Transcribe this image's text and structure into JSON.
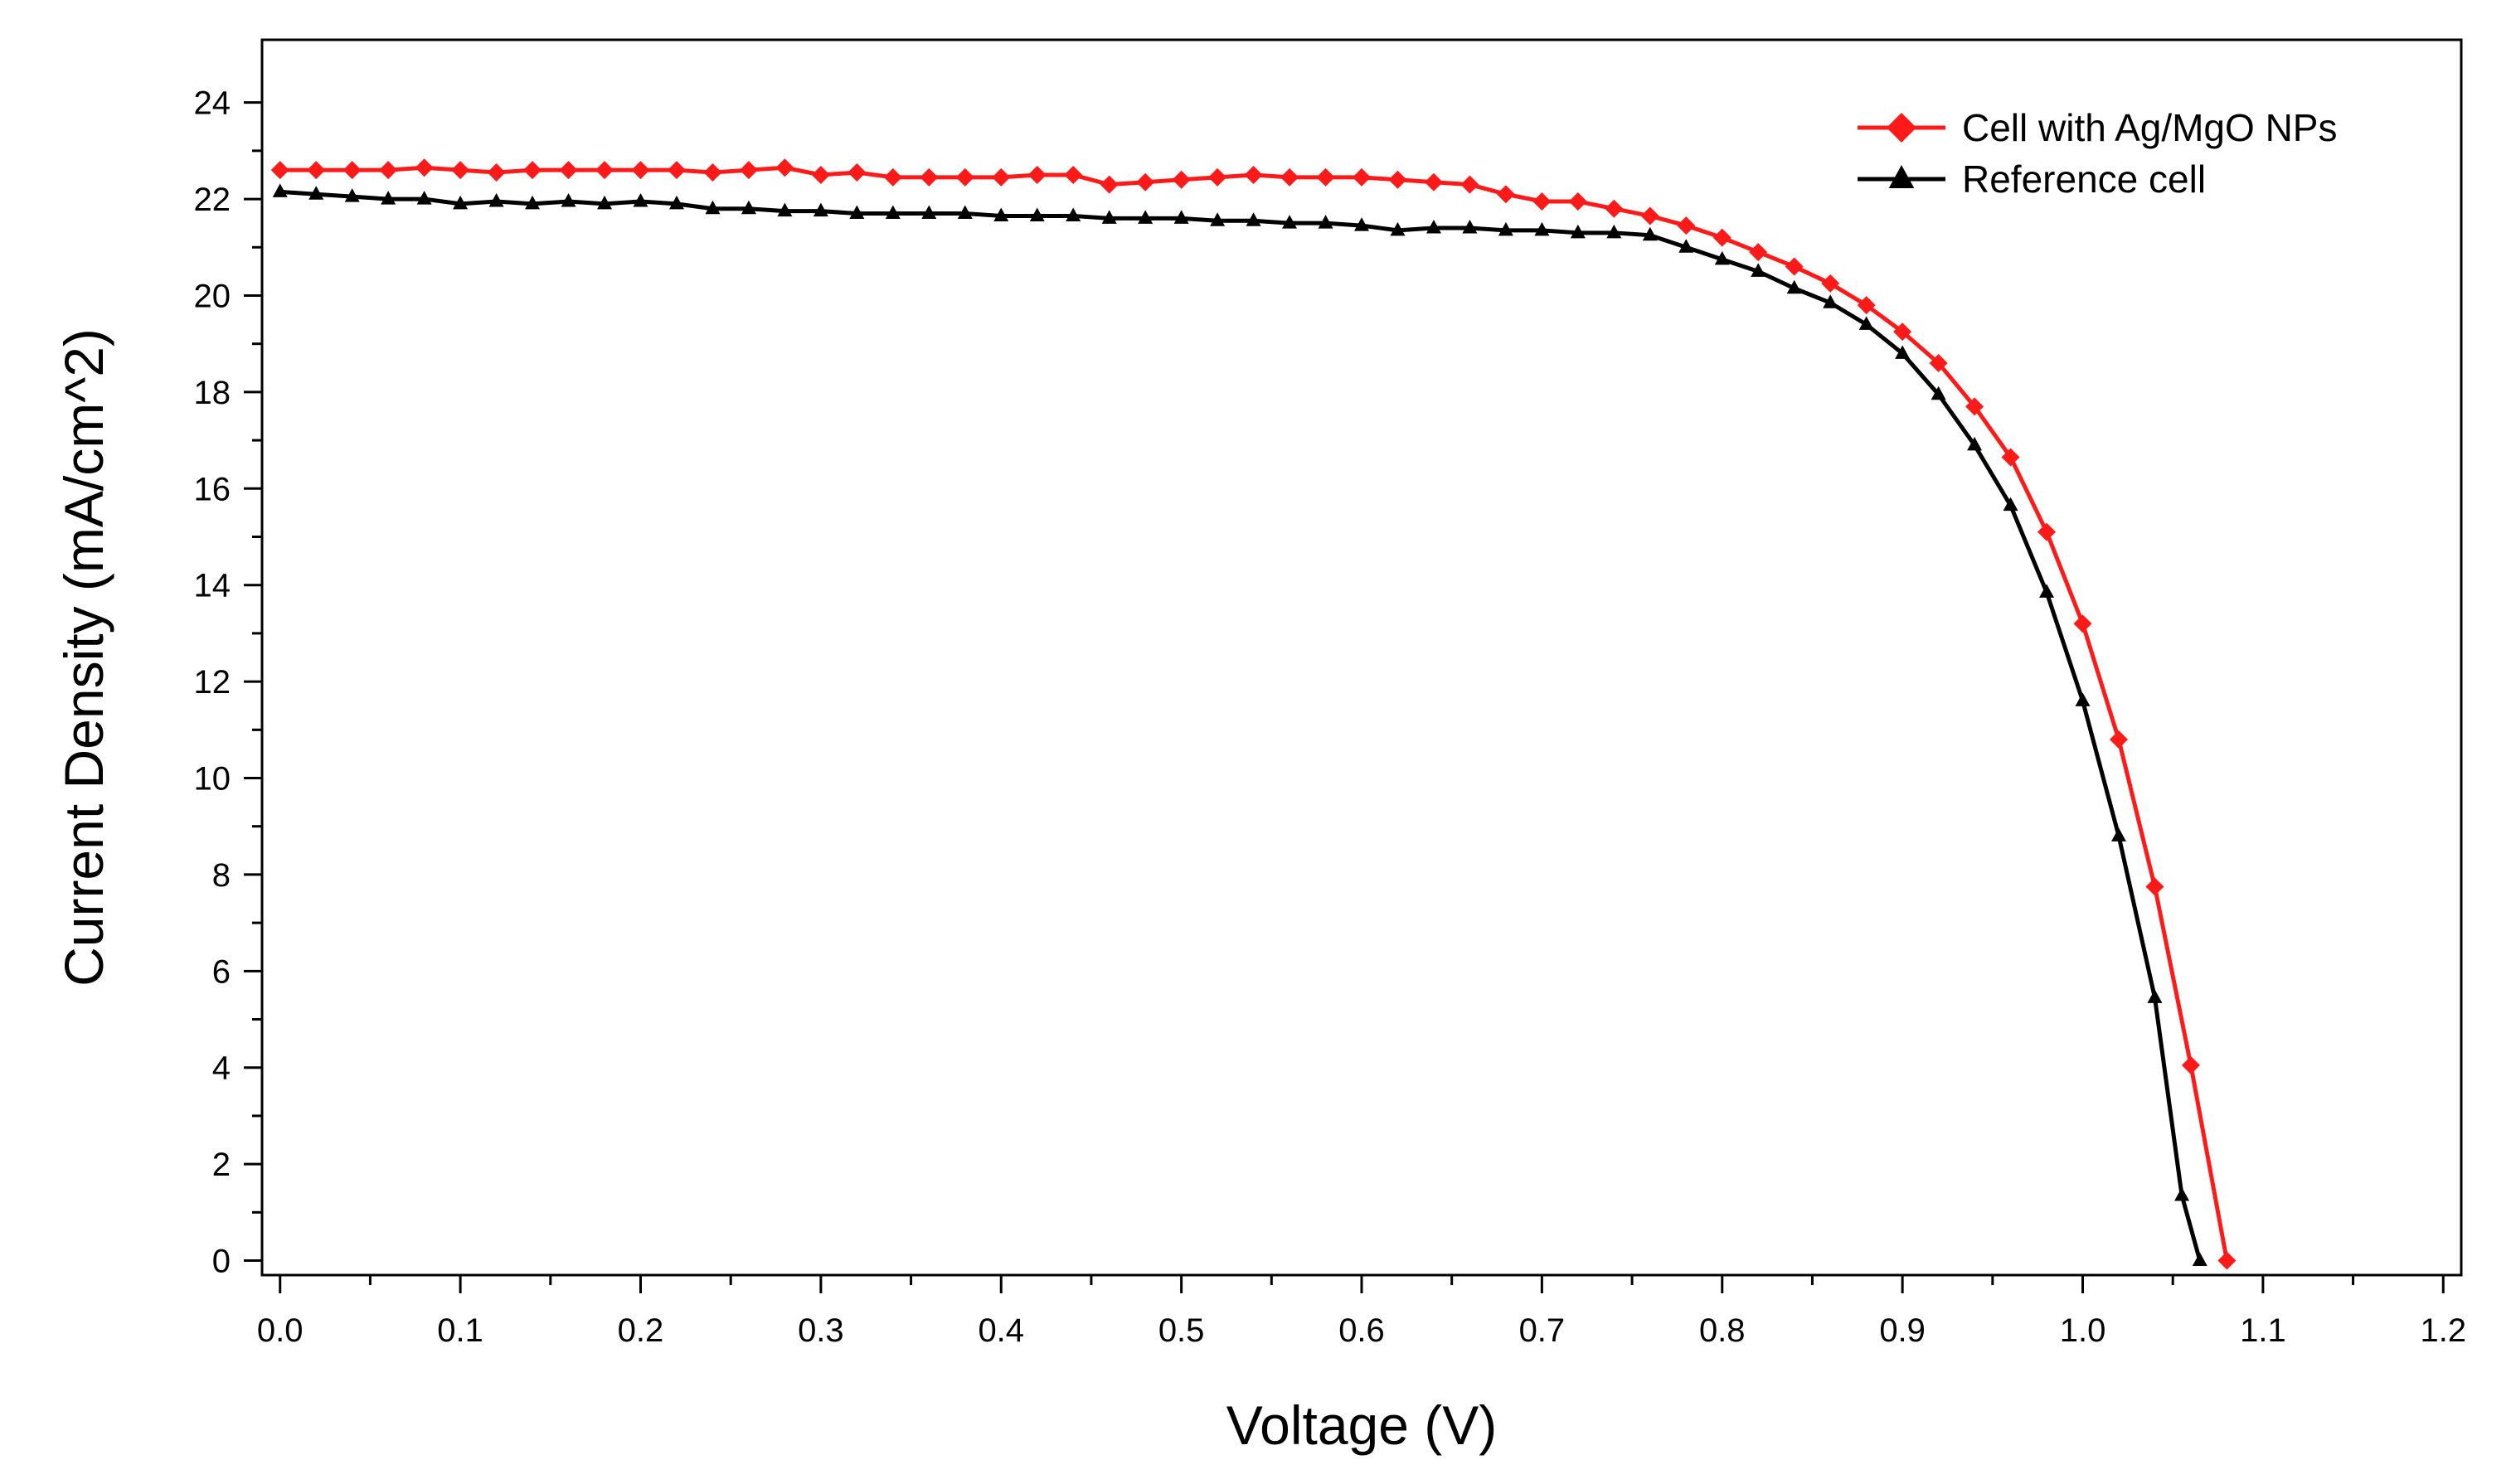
{
  "chart_data": {
    "type": "line",
    "title": "",
    "xlabel": "Voltage (V)",
    "ylabel": "Current Density (mA/cm^2)",
    "xlim": [
      -0.01,
      1.21
    ],
    "ylim": [
      -0.3,
      25.3
    ],
    "xticks": [
      0.0,
      0.1,
      0.2,
      0.3,
      0.4,
      0.5,
      0.6,
      0.7,
      0.8,
      0.9,
      1.0,
      1.1,
      1.2
    ],
    "xtick_labels": [
      "0.0",
      "0.1",
      "0.2",
      "0.3",
      "0.4",
      "0.5",
      "0.6",
      "0.7",
      "0.8",
      "0.9",
      "1.0",
      "1.1",
      "1.2"
    ],
    "yticks": [
      0,
      2,
      4,
      6,
      8,
      10,
      12,
      14,
      16,
      18,
      20,
      22,
      24
    ],
    "ytick_labels": [
      "0",
      "2",
      "4",
      "6",
      "8",
      "10",
      "12",
      "14",
      "16",
      "18",
      "20",
      "22",
      "24"
    ],
    "grid": false,
    "legend_position": "top-right",
    "series": [
      {
        "name": "Cell with Ag/MgO NPs",
        "color": "#ff1a1a",
        "marker": "diamond",
        "x": [
          0.0,
          0.02,
          0.04,
          0.06,
          0.08,
          0.1,
          0.12,
          0.14,
          0.16,
          0.18,
          0.2,
          0.22,
          0.24,
          0.26,
          0.28,
          0.3,
          0.32,
          0.34,
          0.36,
          0.38,
          0.4,
          0.42,
          0.44,
          0.46,
          0.48,
          0.5,
          0.52,
          0.54,
          0.56,
          0.58,
          0.6,
          0.62,
          0.64,
          0.66,
          0.68,
          0.7,
          0.72,
          0.74,
          0.76,
          0.78,
          0.8,
          0.82,
          0.84,
          0.86,
          0.88,
          0.9,
          0.92,
          0.94,
          0.96,
          0.98,
          1.0,
          1.02,
          1.04,
          1.06,
          1.08
        ],
        "y": [
          22.6,
          22.6,
          22.6,
          22.6,
          22.65,
          22.6,
          22.55,
          22.6,
          22.6,
          22.6,
          22.6,
          22.6,
          22.55,
          22.6,
          22.65,
          22.5,
          22.55,
          22.45,
          22.45,
          22.45,
          22.45,
          22.5,
          22.5,
          22.3,
          22.35,
          22.4,
          22.45,
          22.5,
          22.45,
          22.45,
          22.45,
          22.4,
          22.35,
          22.3,
          22.1,
          21.95,
          21.95,
          21.8,
          21.65,
          21.45,
          21.2,
          20.9,
          20.6,
          20.25,
          19.8,
          19.25,
          18.6,
          17.7,
          16.65,
          15.1,
          13.2,
          10.8,
          7.75,
          4.05,
          0.0
        ]
      },
      {
        "name": "Reference cell",
        "color": "#000000",
        "marker": "triangle",
        "x": [
          0.0,
          0.02,
          0.04,
          0.06,
          0.08,
          0.1,
          0.12,
          0.14,
          0.16,
          0.18,
          0.2,
          0.22,
          0.24,
          0.26,
          0.28,
          0.3,
          0.32,
          0.34,
          0.36,
          0.38,
          0.4,
          0.42,
          0.44,
          0.46,
          0.48,
          0.5,
          0.52,
          0.54,
          0.56,
          0.58,
          0.6,
          0.62,
          0.64,
          0.66,
          0.68,
          0.7,
          0.72,
          0.74,
          0.76,
          0.78,
          0.8,
          0.82,
          0.84,
          0.86,
          0.88,
          0.9,
          0.92,
          0.94,
          0.96,
          0.98,
          1.0,
          1.02,
          1.04,
          1.055,
          1.065
        ],
        "y": [
          22.15,
          22.1,
          22.05,
          22.0,
          22.0,
          21.9,
          21.95,
          21.9,
          21.95,
          21.9,
          21.95,
          21.9,
          21.8,
          21.8,
          21.75,
          21.75,
          21.7,
          21.7,
          21.7,
          21.7,
          21.65,
          21.65,
          21.65,
          21.6,
          21.6,
          21.6,
          21.55,
          21.55,
          21.5,
          21.5,
          21.45,
          21.35,
          21.4,
          21.4,
          21.35,
          21.35,
          21.3,
          21.3,
          21.25,
          21.0,
          20.75,
          20.5,
          20.15,
          19.85,
          19.4,
          18.8,
          17.95,
          16.9,
          15.65,
          13.85,
          11.6,
          8.8,
          5.45,
          1.35,
          0.0
        ]
      }
    ]
  }
}
